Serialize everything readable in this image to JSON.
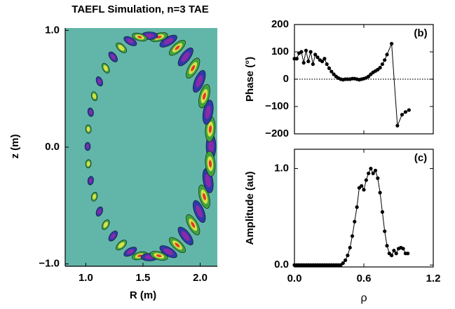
{
  "chart_data": [
    {
      "type": "contour",
      "title": "TAEFL Simulation, n=3 TAE",
      "x_label": "R (m)",
      "y_label": "z (m)",
      "xlim": [
        0.82,
        2.15
      ],
      "ylim": [
        -1.02,
        1.02
      ],
      "xticks": [
        {
          "value": 1,
          "label": "1.0"
        },
        1.5,
        {
          "value": 2,
          "label": "2.0"
        }
      ],
      "yticks": [
        {
          "value": -1,
          "label": "−1.0"
        },
        {
          "value": 0,
          "label": "0.0"
        },
        {
          "value": 1,
          "label": "1.0"
        }
      ],
      "background": "#62b6a9"
    },
    {
      "type": "line",
      "y_label": "Phase (°)",
      "panel_label": "(b)",
      "color": "#000000",
      "x": [
        0,
        0.02,
        0.04,
        0.06,
        0.08,
        0.1,
        0.12,
        0.14,
        0.16,
        0.18,
        0.2,
        0.22,
        0.24,
        0.26,
        0.28,
        0.3,
        0.32,
        0.34,
        0.36,
        0.38,
        0.4,
        0.42,
        0.44,
        0.46,
        0.48,
        0.5,
        0.52,
        0.54,
        0.56,
        0.58,
        0.6,
        0.62,
        0.64,
        0.66,
        0.68,
        0.7,
        0.72,
        0.74,
        0.76,
        0.78,
        0.8,
        0.84,
        0.89,
        0.93,
        0.96,
        0.99
      ],
      "values": [
        75,
        75,
        95,
        100,
        60,
        105,
        65,
        100,
        55,
        90,
        80,
        70,
        65,
        75,
        55,
        40,
        28,
        18,
        10,
        4,
        0,
        -2,
        0,
        0,
        0,
        2,
        2,
        0,
        -2,
        0,
        2,
        5,
        10,
        18,
        25,
        30,
        35,
        42,
        55,
        70,
        90,
        130,
        -170,
        -130,
        -120,
        -113
      ],
      "xlim": [
        0,
        1.2
      ],
      "xticks": [
        0,
        0.6,
        1.2
      ],
      "ylim": [
        -200,
        200
      ],
      "yticks": [
        {
          "value": -200,
          "label": "−200"
        },
        {
          "value": -100,
          "label": "−100"
        },
        0,
        100,
        200
      ],
      "zero_line": true
    },
    {
      "type": "line",
      "y_label": "Amplitude (au)",
      "x_label": "ρ",
      "panel_label": "(c)",
      "color": "#000000",
      "x": [
        0,
        0.02,
        0.04,
        0.06,
        0.08,
        0.1,
        0.12,
        0.14,
        0.16,
        0.18,
        0.2,
        0.22,
        0.24,
        0.26,
        0.28,
        0.3,
        0.32,
        0.34,
        0.36,
        0.38,
        0.4,
        0.42,
        0.44,
        0.46,
        0.48,
        0.5,
        0.52,
        0.54,
        0.56,
        0.58,
        0.6,
        0.62,
        0.64,
        0.66,
        0.68,
        0.7,
        0.72,
        0.74,
        0.76,
        0.78,
        0.8,
        0.82,
        0.84,
        0.86,
        0.88,
        0.9,
        0.92,
        0.94,
        0.96,
        0.98
      ],
      "values": [
        0,
        0,
        0,
        0,
        0,
        0,
        0,
        0,
        0,
        0,
        0,
        0,
        0,
        0,
        0,
        0,
        0,
        0,
        0,
        0,
        0,
        0.02,
        0.05,
        0.1,
        0.18,
        0.3,
        0.45,
        0.6,
        0.8,
        0.82,
        0.78,
        0.88,
        0.95,
        1.0,
        0.95,
        0.98,
        0.9,
        0.75,
        0.55,
        0.35,
        0.2,
        0.12,
        0.1,
        0.15,
        0.12,
        0.17,
        0.18,
        0.17,
        0.12,
        0.12
      ],
      "xlim": [
        0,
        1.2
      ],
      "xticks": [
        {
          "value": 0,
          "label": "0.0"
        },
        0.6,
        1.2
      ],
      "ylim": [
        -0.02,
        1.2
      ],
      "yticks": [
        {
          "value": 0,
          "label": "0.0"
        },
        {
          "value": 1,
          "label": "1.0"
        }
      ]
    }
  ]
}
